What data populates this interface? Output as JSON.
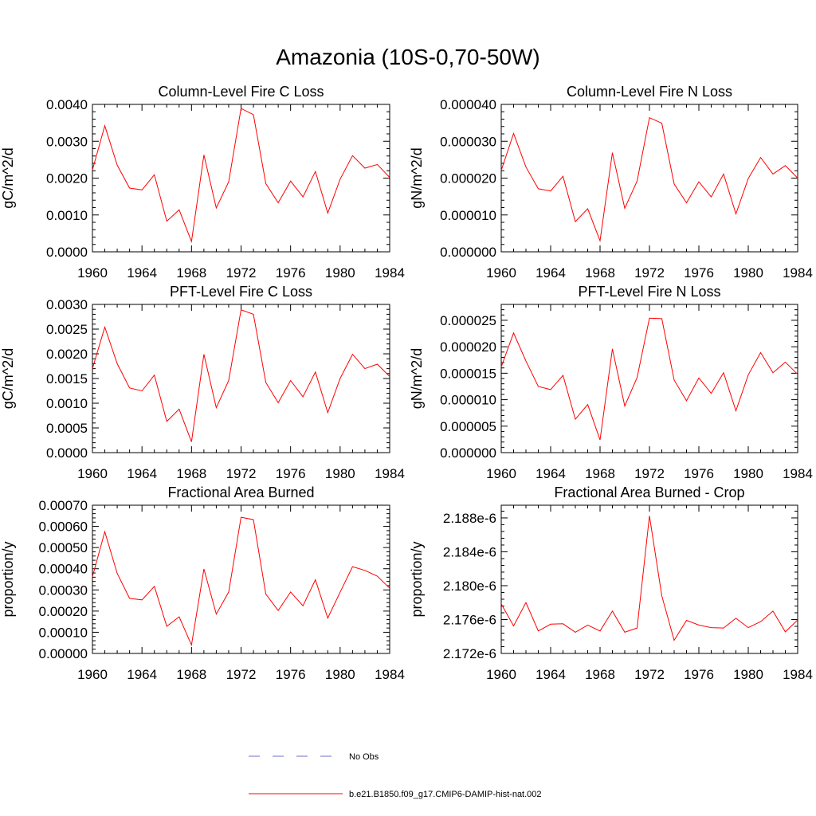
{
  "figure_title": "Amazonia (10S-0,70-50W)",
  "colors": {
    "model": "#ff0000",
    "obs": "#6f6fc8",
    "axes": "#000000"
  },
  "legend": {
    "items": [
      {
        "label": "No Obs",
        "style": "dashed",
        "color": "#6f6fc8"
      },
      {
        "label": "b.e21.B1850.f09_g17.CMIP6-DAMIP-hist-nat.002",
        "style": "solid",
        "color": "#ff0000"
      }
    ]
  },
  "chart_data": [
    {
      "type": "line",
      "title": "Column-Level Fire C Loss",
      "ylabel": "gC/m^2/d",
      "xlim": [
        1960,
        1984
      ],
      "ylim": [
        0,
        0.004
      ],
      "xticks": [
        "1960",
        "1964",
        "1968",
        "1972",
        "1976",
        "1980",
        "1984"
      ],
      "yticks": [
        "0.0000",
        "0.0010",
        "0.0020",
        "0.0030",
        "0.0040"
      ],
      "x": [
        1960,
        1961,
        1962,
        1963,
        1964,
        1965,
        1966,
        1967,
        1968,
        1969,
        1970,
        1971,
        1972,
        1973,
        1974,
        1975,
        1976,
        1977,
        1978,
        1979,
        1980,
        1981,
        1982,
        1983,
        1984
      ],
      "series": [
        {
          "name": "b.e21.B1850.f09_g17.CMIP6-DAMIP-hist-nat.002",
          "values": [
            0.00222,
            0.00342,
            0.00235,
            0.00173,
            0.00168,
            0.00209,
            0.00083,
            0.00114,
            0.00028,
            0.00263,
            0.00119,
            0.0019,
            0.00389,
            0.00372,
            0.00185,
            0.00133,
            0.00192,
            0.00149,
            0.00218,
            0.00105,
            0.00197,
            0.00261,
            0.00227,
            0.00237,
            0.00202
          ]
        }
      ]
    },
    {
      "type": "line",
      "title": "Column-Level Fire N Loss",
      "ylabel": "gN/m^2/d",
      "xlim": [
        1960,
        1984
      ],
      "ylim": [
        0,
        4e-05
      ],
      "xticks": [
        "1960",
        "1964",
        "1968",
        "1972",
        "1976",
        "1980",
        "1984"
      ],
      "yticks": [
        "0.000000",
        "0.000010",
        "0.000020",
        "0.000030",
        "0.000040"
      ],
      "x": [
        1960,
        1961,
        1962,
        1963,
        1964,
        1965,
        1966,
        1967,
        1968,
        1969,
        1970,
        1971,
        1972,
        1973,
        1974,
        1975,
        1976,
        1977,
        1978,
        1979,
        1980,
        1981,
        1982,
        1983,
        1984
      ],
      "series": [
        {
          "name": "b.e21.B1850.f09_g17.CMIP6-DAMIP-hist-nat.002",
          "values": [
            2.21e-05,
            3.21e-05,
            2.3e-05,
            1.71e-05,
            1.65e-05,
            2.05e-05,
            8.2e-06,
            1.17e-05,
            3e-06,
            2.69e-05,
            1.18e-05,
            1.92e-05,
            3.64e-05,
            3.49e-05,
            1.84e-05,
            1.33e-05,
            1.9e-05,
            1.49e-05,
            2.11e-05,
            1.03e-05,
            1.99e-05,
            2.56e-05,
            2.11e-05,
            2.34e-05,
            2e-05
          ]
        }
      ]
    },
    {
      "type": "line",
      "title": "PFT-Level Fire C Loss",
      "ylabel": "gC/m^2/d",
      "xlim": [
        1960,
        1984
      ],
      "ylim": [
        0,
        0.003
      ],
      "xticks": [
        "1960",
        "1964",
        "1968",
        "1972",
        "1976",
        "1980",
        "1984"
      ],
      "yticks": [
        "0.0000",
        "0.0005",
        "0.0010",
        "0.0015",
        "0.0020",
        "0.0025",
        "0.0030"
      ],
      "x": [
        1960,
        1961,
        1962,
        1963,
        1964,
        1965,
        1966,
        1967,
        1968,
        1969,
        1970,
        1971,
        1972,
        1973,
        1974,
        1975,
        1976,
        1977,
        1978,
        1979,
        1980,
        1981,
        1982,
        1983,
        1984
      ],
      "series": [
        {
          "name": "b.e21.B1850.f09_g17.CMIP6-DAMIP-hist-nat.002",
          "values": [
            0.0017,
            0.00254,
            0.0018,
            0.00131,
            0.00125,
            0.00157,
            0.00063,
            0.00088,
            0.00022,
            0.00199,
            0.00091,
            0.00146,
            0.00289,
            0.0028,
            0.00142,
            0.00101,
            0.00146,
            0.00113,
            0.00163,
            0.00081,
            0.0015,
            0.00199,
            0.0017,
            0.00179,
            0.00154
          ]
        }
      ]
    },
    {
      "type": "line",
      "title": "PFT-Level Fire N Loss",
      "ylabel": "gN/m^2/d",
      "xlim": [
        1960,
        1984
      ],
      "ylim": [
        0,
        2.8e-05
      ],
      "xticks": [
        "1960",
        "1964",
        "1968",
        "1972",
        "1976",
        "1980",
        "1984"
      ],
      "yticks": [
        "0.000000",
        "0.000005",
        "0.000010",
        "0.000015",
        "0.000020",
        "0.000025"
      ],
      "x": [
        1960,
        1961,
        1962,
        1963,
        1964,
        1965,
        1966,
        1967,
        1968,
        1969,
        1970,
        1971,
        1972,
        1973,
        1974,
        1975,
        1976,
        1977,
        1978,
        1979,
        1980,
        1981,
        1982,
        1983,
        1984
      ],
      "series": [
        {
          "name": "b.e21.B1850.f09_g17.CMIP6-DAMIP-hist-nat.002",
          "values": [
            1.62e-05,
            2.26e-05,
            1.73e-05,
            1.25e-05,
            1.19e-05,
            1.46e-05,
            6.3e-06,
            9.1e-06,
            2.4e-06,
            1.96e-05,
            8.8e-06,
            1.42e-05,
            2.54e-05,
            2.53e-05,
            1.37e-05,
            9.8e-06,
            1.41e-05,
            1.12e-05,
            1.51e-05,
            7.9e-06,
            1.47e-05,
            1.89e-05,
            1.51e-05,
            1.71e-05,
            1.48e-05
          ]
        }
      ]
    },
    {
      "type": "line",
      "title": "Fractional Area Burned",
      "ylabel": "proportion/y",
      "xlim": [
        1960,
        1984
      ],
      "ylim": [
        0,
        0.0007
      ],
      "xticks": [
        "1960",
        "1964",
        "1968",
        "1972",
        "1976",
        "1980",
        "1984"
      ],
      "yticks": [
        "0.00000",
        "0.00010",
        "0.00020",
        "0.00030",
        "0.00040",
        "0.00050",
        "0.00060",
        "0.00070"
      ],
      "x": [
        1960,
        1961,
        1962,
        1963,
        1964,
        1965,
        1966,
        1967,
        1968,
        1969,
        1970,
        1971,
        1972,
        1973,
        1974,
        1975,
        1976,
        1977,
        1978,
        1979,
        1980,
        1981,
        1982,
        1983,
        1984
      ],
      "series": [
        {
          "name": "b.e21.B1850.f09_g17.CMIP6-DAMIP-hist-nat.002",
          "values": [
            0.000362,
            0.000575,
            0.000378,
            0.00026,
            0.000253,
            0.000317,
            0.000128,
            0.000173,
            4e-05,
            0.000399,
            0.000186,
            0.00029,
            0.000643,
            0.000632,
            0.00028,
            0.000203,
            0.00029,
            0.000225,
            0.000348,
            0.000167,
            0.000289,
            0.00041,
            0.000392,
            0.000365,
            0.000308
          ]
        }
      ]
    },
    {
      "type": "line",
      "title": "Fractional Area Burned - Crop",
      "ylabel": "proportion/y",
      "xlim": [
        1960,
        1984
      ],
      "ylim": [
        2.172e-06,
        2.1895e-06
      ],
      "xticks": [
        "1960",
        "1964",
        "1968",
        "1972",
        "1976",
        "1980",
        "1984"
      ],
      "yticks": [
        "2.172e-6",
        "2.176e-6",
        "2.180e-6",
        "2.184e-6",
        "2.188e-6"
      ],
      "ytick_values": [
        2.172e-06,
        2.176e-06,
        2.18e-06,
        2.184e-06,
        2.188e-06
      ],
      "x": [
        1960,
        1961,
        1962,
        1963,
        1964,
        1965,
        1966,
        1967,
        1968,
        1969,
        1970,
        1971,
        1972,
        1973,
        1974,
        1975,
        1976,
        1977,
        1978,
        1979,
        1980,
        1981,
        1982,
        1983,
        1984
      ],
      "series": [
        {
          "name": "b.e21.B1850.f09_g17.CMIP6-DAMIP-hist-nat.002",
          "values": [
            2.17785e-06,
            2.17525e-06,
            2.178e-06,
            2.17465e-06,
            2.17545e-06,
            2.1755e-06,
            2.1745e-06,
            2.17535e-06,
            2.17465e-06,
            2.177e-06,
            2.1745e-06,
            2.175e-06,
            2.18825e-06,
            2.1788e-06,
            2.17355e-06,
            2.1759e-06,
            2.17535e-06,
            2.17505e-06,
            2.175e-06,
            2.17615e-06,
            2.17505e-06,
            2.17575e-06,
            2.177e-06,
            2.17455e-06,
            2.17595e-06
          ]
        }
      ]
    }
  ]
}
